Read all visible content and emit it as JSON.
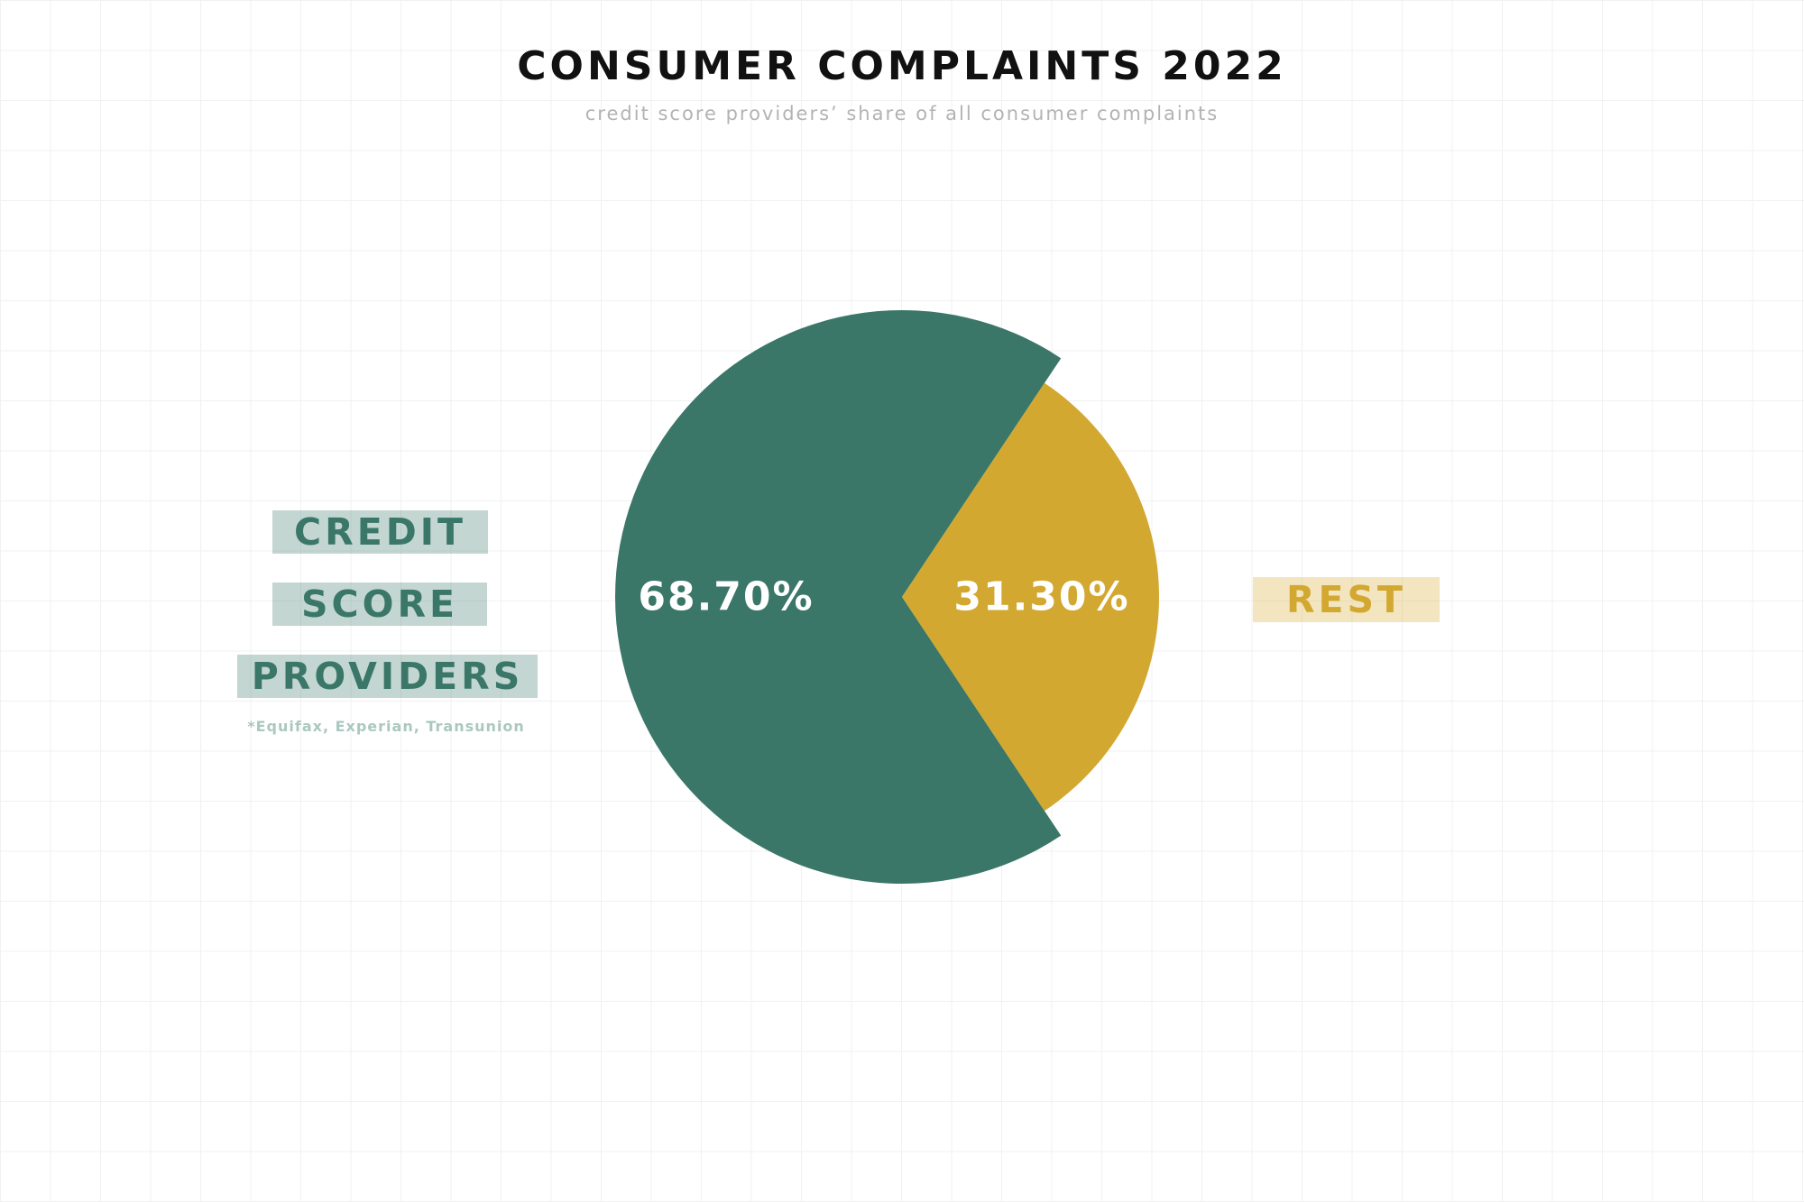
{
  "chart_data": {
    "type": "pie",
    "title": "CONSUMER COMPLAINTS 2022",
    "subtitle": "credit score providers’ share of all consumer complaints",
    "slices": [
      {
        "label_lines": [
          "CREDIT",
          "SCORE",
          "PROVIDERS"
        ],
        "value": 68.7,
        "value_label": "68.70%",
        "color": "#3a7768",
        "note": "*Equifax, Experian, Transunion"
      },
      {
        "label_lines": [
          "REST"
        ],
        "value": 31.3,
        "value_label": "31.30%",
        "color": "#d3a830"
      }
    ]
  }
}
